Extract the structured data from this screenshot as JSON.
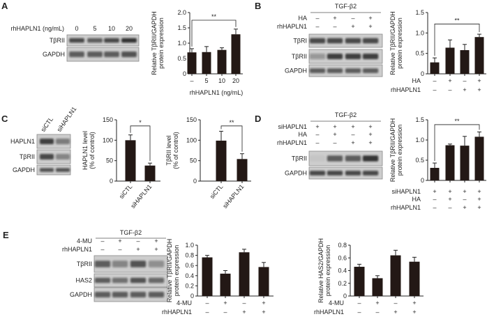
{
  "panels": {
    "A": "A",
    "B": "B",
    "C": "C",
    "D": "D",
    "E": "E"
  },
  "blots": [
    {
      "panel": "A",
      "treatment": "",
      "rows": [
        {
          "label": "rhHAPLN1 (ng/mL)",
          "values": [
            "0",
            "5",
            "10",
            "20"
          ]
        }
      ],
      "bands": [
        "TβRII",
        "GAPDH"
      ]
    },
    {
      "panel": "B",
      "treatment": "TGF-β2",
      "rows": [
        {
          "label": "HA",
          "values": [
            "–",
            "+",
            "–",
            "+"
          ]
        },
        {
          "label": "rhHAPLN1",
          "values": [
            "–",
            "–",
            "+",
            "+"
          ]
        }
      ],
      "bands": [
        "TβRI",
        "TβRII",
        "GAPDH"
      ]
    },
    {
      "panel": "C",
      "treatment": "",
      "lanes": [
        "siCTL",
        "siHAPLN1"
      ],
      "bands": [
        "HAPLN1",
        "TβRII",
        "GAPDH"
      ]
    },
    {
      "panel": "D",
      "treatment": "TGF-β2",
      "rows": [
        {
          "label": "siHAPLN1",
          "values": [
            "+",
            "+",
            "+",
            "+"
          ]
        },
        {
          "label": "HA",
          "values": [
            "–",
            "+",
            "–",
            "+"
          ]
        },
        {
          "label": "rhHAPLN1",
          "values": [
            "–",
            "–",
            "+",
            "+"
          ]
        }
      ],
      "bands": [
        "TβRII",
        "GAPDH"
      ]
    },
    {
      "panel": "E",
      "treatment": "TGF-β2",
      "rows": [
        {
          "label": "4-MU",
          "values": [
            "–",
            "+",
            "–",
            "+"
          ]
        },
        {
          "label": "rhHAPLN1",
          "values": [
            "–",
            "–",
            "+",
            "+"
          ]
        }
      ],
      "bands": [
        "TβRII",
        "HAS2",
        "GAPDH"
      ]
    }
  ],
  "chart_data": [
    {
      "panel": "A",
      "type": "bar",
      "ylabel": [
        "Relative TβRII/GAPDH",
        "protein expression"
      ],
      "xlabel": "rhHAPLN1 (ng/mL)",
      "categories": [
        "–",
        "5",
        "10",
        "20"
      ],
      "values": [
        0.7,
        0.71,
        0.78,
        1.29
      ],
      "errors": [
        0.12,
        0.18,
        0.07,
        0.17
      ],
      "ylim": [
        0,
        2.0
      ],
      "yticks": [
        0,
        0.5,
        1.0,
        1.5,
        2.0
      ],
      "ytick_labels": [
        "0",
        "0.5",
        "1.0",
        "1.5",
        "2.0"
      ],
      "significance": {
        "from": 0,
        "to": 3,
        "label": "**",
        "y": 1.75
      },
      "bar_color": "#231815"
    },
    {
      "panel": "B",
      "type": "bar",
      "ylabel": [
        "Relative TβRII/GAPDH",
        "protein expression"
      ],
      "condition_rows": [
        {
          "label": "HA",
          "values": [
            "–",
            "+",
            "–",
            "+"
          ]
        },
        {
          "label": "rhHAPLN1",
          "values": [
            "–",
            "–",
            "+",
            "+"
          ]
        }
      ],
      "values": [
        0.28,
        0.64,
        0.58,
        0.9
      ],
      "errors": [
        0.11,
        0.19,
        0.14,
        0.07
      ],
      "ylim": [
        0,
        1.5
      ],
      "yticks": [
        0,
        0.5,
        1.0,
        1.5
      ],
      "ytick_labels": [
        "0",
        "0.5",
        "1.0",
        "1.5"
      ],
      "significance": {
        "from": 0,
        "to": 3,
        "label": "**",
        "y": 1.22
      },
      "bar_color": "#231815"
    },
    {
      "panel": "C",
      "type": "bar",
      "ylabel": [
        "HAPLN1 level",
        "(% of control)"
      ],
      "categories": [
        "siCTL",
        "siHAPLN1"
      ],
      "values": [
        100,
        38
      ],
      "errors": [
        13,
        6
      ],
      "ylim": [
        0,
        150
      ],
      "yticks": [
        0,
        50,
        100,
        150
      ],
      "ytick_labels": [
        "0",
        "50",
        "100",
        "150"
      ],
      "significance": {
        "from": 0,
        "to": 1,
        "label": "*",
        "y": 135
      },
      "bar_color": "#231815"
    },
    {
      "panel": "C",
      "type": "bar",
      "ylabel": [
        "TβRII level",
        "(% of control)"
      ],
      "categories": [
        "siCTL",
        "siHAPLN1"
      ],
      "values": [
        99,
        54
      ],
      "errors": [
        23,
        13
      ],
      "ylim": [
        0,
        150
      ],
      "yticks": [
        0,
        50,
        100,
        150
      ],
      "ytick_labels": [
        "0",
        "50",
        "100",
        "150"
      ],
      "significance": {
        "from": 0,
        "to": 1,
        "label": "**",
        "y": 135
      },
      "bar_color": "#231815"
    },
    {
      "panel": "D",
      "type": "bar",
      "ylabel": [
        "Relative TβRII/GAPDH",
        "protein expression"
      ],
      "condition_rows": [
        {
          "label": "siHAPLN1",
          "values": [
            "+",
            "+",
            "+",
            "+"
          ]
        },
        {
          "label": "HA",
          "values": [
            "–",
            "+",
            "–",
            "+"
          ]
        },
        {
          "label": "rhHAPLN1",
          "values": [
            "–",
            "–",
            "+",
            "+"
          ]
        }
      ],
      "values": [
        0.31,
        0.87,
        0.86,
        1.08
      ],
      "errors": [
        0.12,
        0.03,
        0.23,
        0.12
      ],
      "ylim": [
        0,
        1.5
      ],
      "yticks": [
        0,
        0.5,
        1.0,
        1.5
      ],
      "ytick_labels": [
        "0",
        "0.5",
        "1.0",
        "1.5"
      ],
      "significance": {
        "from": 0,
        "to": 3,
        "label": "**",
        "y": 1.38
      },
      "bar_color": "#231815"
    },
    {
      "panel": "E",
      "type": "bar",
      "ylabel": [
        "Relative TβRII/GAPDH",
        "protein expression"
      ],
      "condition_rows": [
        {
          "label": "4-MU",
          "values": [
            "–",
            "+",
            "–",
            "+"
          ]
        },
        {
          "label": "rhHAPLN1",
          "values": [
            "–",
            "–",
            "+",
            "+"
          ]
        }
      ],
      "values": [
        0.76,
        0.44,
        0.86,
        0.57
      ],
      "errors": [
        0.04,
        0.06,
        0.06,
        0.09
      ],
      "ylim": [
        0,
        1.0
      ],
      "yticks": [
        0,
        0.2,
        0.4,
        0.6,
        0.8,
        1.0
      ],
      "ytick_labels": [
        "0",
        "0.2",
        "0.4",
        "0.6",
        "0.8",
        "1.0"
      ],
      "bar_color": "#231815"
    },
    {
      "panel": "E",
      "type": "bar",
      "ylabel": [
        "Relative HAS2/GAPDH",
        "protein expression"
      ],
      "condition_rows": [
        {
          "label": "4-MU",
          "values": [
            "–",
            "+",
            "–",
            "+"
          ]
        },
        {
          "label": "rhHAPLN1",
          "values": [
            "–",
            "–",
            "+",
            "+"
          ]
        }
      ],
      "values": [
        0.46,
        0.28,
        0.64,
        0.54
      ],
      "errors": [
        0.04,
        0.04,
        0.08,
        0.07
      ],
      "ylim": [
        0,
        0.8
      ],
      "yticks": [
        0,
        0.2,
        0.4,
        0.6,
        0.8
      ],
      "ytick_labels": [
        "0",
        "0.2",
        "0.4",
        "0.6",
        "0.8"
      ],
      "bar_color": "#231815"
    }
  ]
}
